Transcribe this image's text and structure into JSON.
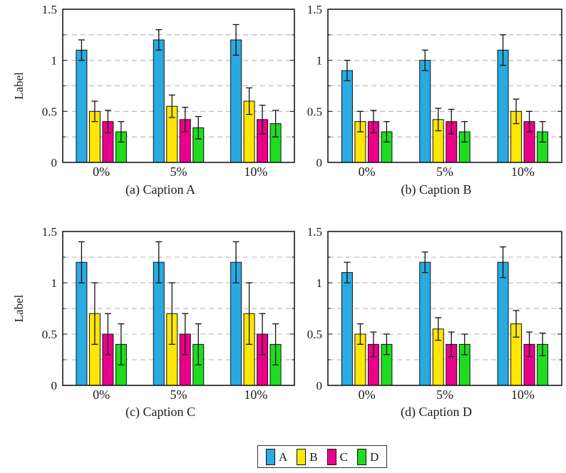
{
  "axes": {
    "ylim": [
      0,
      1.5
    ],
    "yticks": [
      0,
      0.5,
      1,
      1.5
    ],
    "ytick_labels": [
      "0",
      "0.5",
      "1",
      "1.5"
    ],
    "gridlines": [
      0.25,
      0.5,
      0.75,
      1.0,
      1.25
    ],
    "grid_style": "dashed",
    "categories": [
      "0%",
      "5%",
      "10%"
    ]
  },
  "chart_data": [
    {
      "id": "a",
      "type": "bar",
      "caption": "(a) Caption A",
      "title": "",
      "xlabel": "",
      "ylabel": "Label",
      "ylim": [
        0,
        1.5
      ],
      "categories": [
        "0%",
        "5%",
        "10%"
      ],
      "series": [
        {
          "name": "A",
          "color": "#29ABE2",
          "values": [
            1.1,
            1.2,
            1.2
          ],
          "errors": [
            0.1,
            0.1,
            0.15
          ]
        },
        {
          "name": "B",
          "color": "#FFE605",
          "values": [
            0.5,
            0.55,
            0.6
          ],
          "errors": [
            0.1,
            0.11,
            0.13
          ]
        },
        {
          "name": "C",
          "color": "#EB008B",
          "values": [
            0.4,
            0.42,
            0.42
          ],
          "errors": [
            0.11,
            0.12,
            0.14
          ]
        },
        {
          "name": "D",
          "color": "#1EDC1E",
          "values": [
            0.3,
            0.34,
            0.38
          ],
          "errors": [
            0.1,
            0.11,
            0.13
          ]
        }
      ]
    },
    {
      "id": "b",
      "type": "bar",
      "caption": "(b) Caption B",
      "title": "",
      "xlabel": "",
      "ylabel": "",
      "ylim": [
        0,
        1.5
      ],
      "categories": [
        "0%",
        "5%",
        "10%"
      ],
      "series": [
        {
          "name": "A",
          "color": "#29ABE2",
          "values": [
            0.9,
            1.0,
            1.1
          ],
          "errors": [
            0.1,
            0.1,
            0.15
          ]
        },
        {
          "name": "B",
          "color": "#FFE605",
          "values": [
            0.4,
            0.42,
            0.5
          ],
          "errors": [
            0.1,
            0.11,
            0.12
          ]
        },
        {
          "name": "C",
          "color": "#EB008B",
          "values": [
            0.4,
            0.4,
            0.4
          ],
          "errors": [
            0.11,
            0.12,
            0.1
          ]
        },
        {
          "name": "D",
          "color": "#1EDC1E",
          "values": [
            0.3,
            0.3,
            0.3
          ],
          "errors": [
            0.1,
            0.1,
            0.1
          ]
        }
      ]
    },
    {
      "id": "c",
      "type": "bar",
      "caption": "(c) Caption C",
      "title": "",
      "xlabel": "",
      "ylabel": "Label",
      "ylim": [
        0,
        1.5
      ],
      "categories": [
        "0%",
        "5%",
        "10%"
      ],
      "series": [
        {
          "name": "A",
          "color": "#29ABE2",
          "values": [
            1.2,
            1.2,
            1.2
          ],
          "errors": [
            0.2,
            0.2,
            0.2
          ]
        },
        {
          "name": "B",
          "color": "#FFE605",
          "values": [
            0.7,
            0.7,
            0.7
          ],
          "errors": [
            0.3,
            0.3,
            0.3
          ]
        },
        {
          "name": "C",
          "color": "#EB008B",
          "values": [
            0.5,
            0.5,
            0.5
          ],
          "errors": [
            0.2,
            0.2,
            0.2
          ]
        },
        {
          "name": "D",
          "color": "#1EDC1E",
          "values": [
            0.4,
            0.4,
            0.4
          ],
          "errors": [
            0.2,
            0.2,
            0.2
          ]
        }
      ]
    },
    {
      "id": "d",
      "type": "bar",
      "caption": "(d) Caption D",
      "title": "",
      "xlabel": "",
      "ylabel": "",
      "ylim": [
        0,
        1.5
      ],
      "categories": [
        "0%",
        "5%",
        "10%"
      ],
      "series": [
        {
          "name": "A",
          "color": "#29ABE2",
          "values": [
            1.1,
            1.2,
            1.2
          ],
          "errors": [
            0.1,
            0.1,
            0.15
          ]
        },
        {
          "name": "B",
          "color": "#FFE605",
          "values": [
            0.5,
            0.55,
            0.6
          ],
          "errors": [
            0.1,
            0.11,
            0.13
          ]
        },
        {
          "name": "C",
          "color": "#EB008B",
          "values": [
            0.4,
            0.4,
            0.4
          ],
          "errors": [
            0.12,
            0.12,
            0.12
          ]
        },
        {
          "name": "D",
          "color": "#1EDC1E",
          "values": [
            0.4,
            0.4,
            0.4
          ],
          "errors": [
            0.1,
            0.1,
            0.11
          ]
        }
      ]
    }
  ],
  "legend": {
    "entries": [
      {
        "label": "A",
        "color": "#29ABE2"
      },
      {
        "label": "B",
        "color": "#FFE605"
      },
      {
        "label": "C",
        "color": "#EB008B"
      },
      {
        "label": "D",
        "color": "#1EDC1E"
      }
    ]
  }
}
